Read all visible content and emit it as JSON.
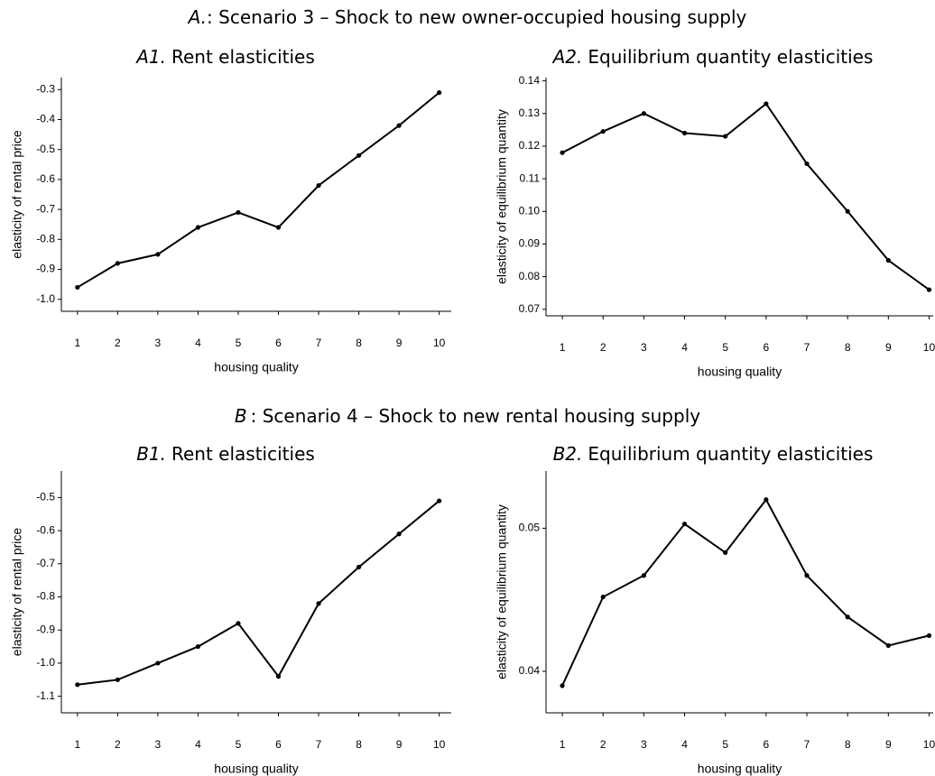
{
  "sections": [
    {
      "label": "A.",
      "text": ": Scenario 3 – Shock to new owner-occupied housing supply"
    },
    {
      "label": "B",
      "text": ": Scenario 4 – Shock to new rental housing supply"
    }
  ],
  "chart_data": [
    {
      "type": "line",
      "panel_label": "A1.",
      "title": "Rent elasticities",
      "xlabel": "housing quality",
      "ylabel": "elasticity of rental price",
      "x": [
        1,
        2,
        3,
        4,
        5,
        6,
        7,
        8,
        9,
        10
      ],
      "values": [
        -0.96,
        -0.88,
        -0.85,
        -0.76,
        -0.71,
        -0.76,
        -0.62,
        -0.52,
        -0.42,
        -0.31
      ],
      "color": "#000000",
      "xlim": [
        0.6,
        10.3
      ],
      "xticks": [
        1,
        2,
        3,
        4,
        5,
        6,
        7,
        8,
        9,
        10
      ],
      "ylim": [
        -1.04,
        -0.26
      ],
      "yticks": [
        {
          "value": -1.0,
          "label": "-1.0"
        },
        -0.9,
        -0.8,
        -0.7,
        -0.6,
        -0.5,
        -0.4,
        -0.3
      ]
    },
    {
      "type": "line",
      "panel_label": "A2.",
      "title": "Equilibrium quantity elasticities",
      "xlabel": "housing quality",
      "ylabel": "elasticity of equilibrium quantity",
      "x": [
        1,
        2,
        3,
        4,
        5,
        6,
        7,
        8,
        9,
        10
      ],
      "values": [
        0.118,
        0.1245,
        0.13,
        0.124,
        0.123,
        0.133,
        0.1146,
        0.1,
        0.085,
        0.076
      ],
      "color": "#000000",
      "xlim": [
        0.6,
        10.1
      ],
      "xticks": [
        1,
        2,
        3,
        4,
        5,
        6,
        7,
        8,
        9,
        10
      ],
      "ylim": [
        0.068,
        0.141
      ],
      "yticks": [
        0.07,
        0.08,
        0.09,
        {
          "value": 0.1,
          "label": "0.10"
        },
        0.11,
        0.12,
        0.13,
        0.14
      ]
    },
    {
      "type": "line",
      "panel_label": "B1.",
      "title": "Rent elasticities",
      "xlabel": "housing quality",
      "ylabel": "elasticity of rental price",
      "x": [
        1,
        2,
        3,
        4,
        5,
        6,
        7,
        8,
        9,
        10
      ],
      "values": [
        -1.065,
        -1.05,
        -1.0,
        -0.95,
        -0.88,
        -1.04,
        -0.82,
        -0.71,
        -0.61,
        -0.51
      ],
      "color": "#000000",
      "xlim": [
        0.6,
        10.3
      ],
      "xticks": [
        1,
        2,
        3,
        4,
        5,
        6,
        7,
        8,
        9,
        10
      ],
      "ylim": [
        -1.15,
        -0.42
      ],
      "yticks": [
        -1.1,
        {
          "value": -1.0,
          "label": "-1.0"
        },
        -0.9,
        -0.8,
        -0.7,
        -0.6,
        -0.5
      ]
    },
    {
      "type": "line",
      "panel_label": "B2.",
      "title": "Equilibrium quantity elasticities",
      "xlabel": "housing quality",
      "ylabel": "elasticity of equilibrium quantity",
      "x": [
        1,
        2,
        3,
        4,
        5,
        6,
        7,
        8,
        9,
        10
      ],
      "values": [
        0.039,
        0.0452,
        0.0467,
        0.0503,
        0.0483,
        0.052,
        0.0467,
        0.0438,
        0.0418,
        0.0425
      ],
      "color": "#000000",
      "xlim": [
        0.6,
        10.1
      ],
      "xticks": [
        1,
        2,
        3,
        4,
        5,
        6,
        7,
        8,
        9,
        10
      ],
      "ylim": [
        0.0371,
        0.054
      ],
      "yticks": [
        0.04,
        0.05
      ]
    }
  ]
}
